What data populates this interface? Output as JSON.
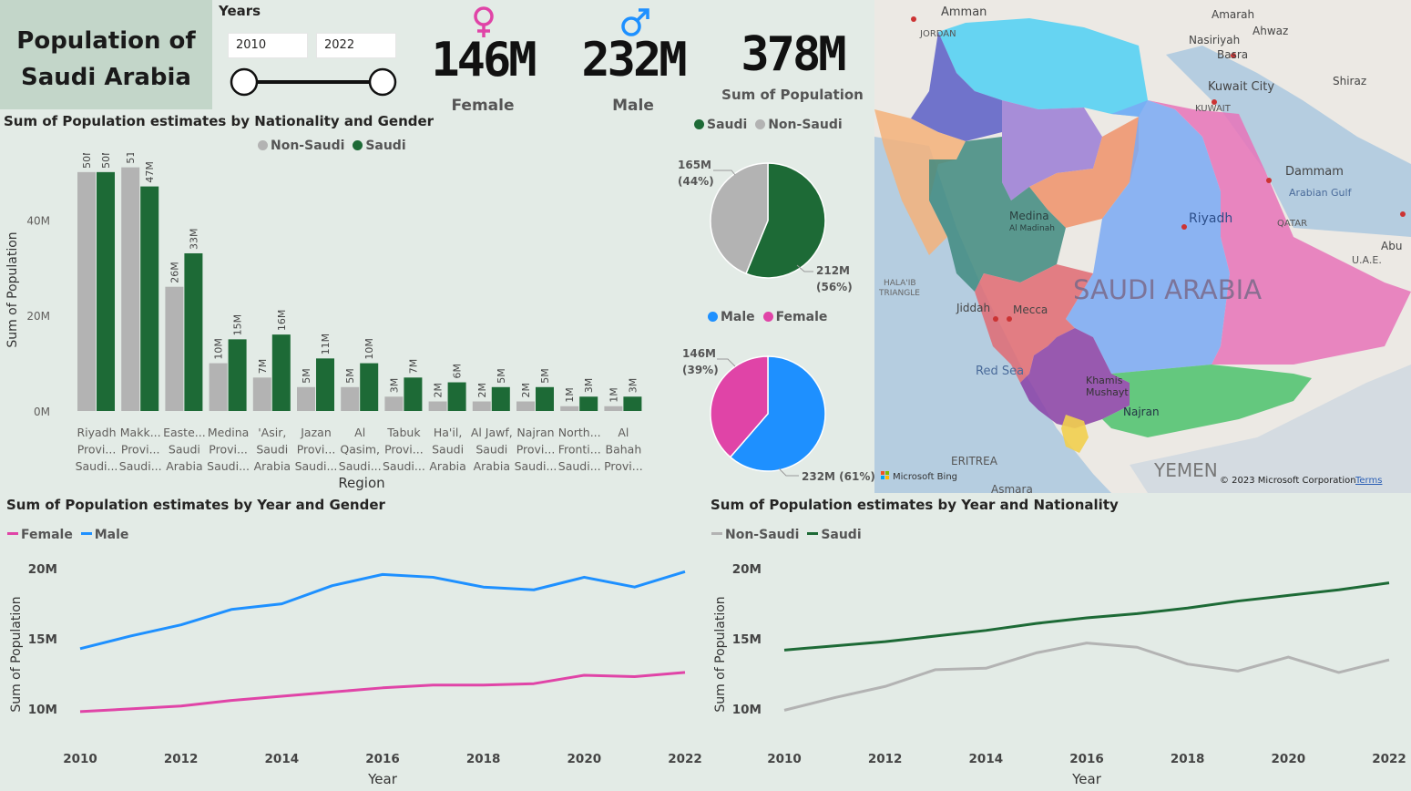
{
  "header": {
    "title_line1": "Population of",
    "title_line2": "Saudi Arabia"
  },
  "slicer": {
    "label": "Years",
    "start": "2010",
    "end": "2022"
  },
  "kpis": {
    "female_value": "146M",
    "female_label": "Female",
    "male_value": "232M",
    "male_label": "Male",
    "total_value": "378M",
    "total_label": "Sum of Population"
  },
  "bar_chart": {
    "title": "Sum of Population estimates by Nationality and Gender",
    "legend": [
      "Non-Saudi",
      "Saudi"
    ],
    "xlabel": "Region",
    "ylabel": "Sum of Population"
  },
  "pie_nat": {
    "legend": [
      "Saudi",
      "Non-Saudi"
    ],
    "label_nonsaudi": "165M",
    "pct_nonsaudi": "(44%)",
    "label_saudi": "212M",
    "pct_saudi": "(56%)"
  },
  "pie_gender": {
    "legend": [
      "Male",
      "Female"
    ],
    "label_female": "146M",
    "pct_female": "(39%)",
    "label_male": "232M (61%)"
  },
  "line_gender": {
    "title": "Sum of Population estimates by Year and Gender",
    "legend": [
      "Female",
      "Male"
    ],
    "xlabel": "Year",
    "ylabel": "Sum of Population"
  },
  "line_nat": {
    "title": "Sum of Population estimates by Year and Nationality",
    "legend": [
      "Non-Saudi",
      "Saudi"
    ],
    "xlabel": "Year",
    "ylabel": "Sum of Population"
  },
  "map": {
    "labels": [
      "Amman",
      "JORDAN",
      "Amarah",
      "Ahwaz",
      "Nasiriyah",
      "Basra",
      "Shiraz",
      "Kuwait City",
      "KUWAIT",
      "Dammam",
      "Arabian Gulf",
      "Riyadh",
      "QATAR",
      "Abu",
      "U.A.E.",
      "Medina",
      "Al Madinah",
      "HALA'IB",
      "TRIANGLE",
      "Jiddah",
      "Mecca",
      "SAUDI ARABIA",
      "Red Sea",
      "Khamis",
      "Mushayt",
      "Najran",
      "ERITREA",
      "YEMEN",
      "Asmara"
    ],
    "bing": "Microsoft Bing",
    "copyright": "© 2023 Microsoft Corporation",
    "terms": "Terms"
  },
  "colors": {
    "saudi": "#1d6a36",
    "non_saudi": "#b3b3b3",
    "male": "#1e90ff",
    "female": "#e044a7"
  },
  "chart_data": [
    {
      "type": "bar",
      "title": "Sum of Population estimates by Nationality and Gender",
      "xlabel": "Region",
      "ylabel": "Sum of Population",
      "ylim": [
        0,
        50000000
      ],
      "yticks": [
        "0M",
        "20M",
        "40M"
      ],
      "categories": [
        "Riyadh Provi... Saudi...",
        "Makk... Provi... Saudi...",
        "Easte... Saudi Arabia",
        "Medina Provi... Saudi...",
        "'Asir, Saudi Arabia",
        "Jazan Provi... Saudi...",
        "Al Qasim, Saudi...",
        "Tabuk Provi... Saudi...",
        "Ha'il, Saudi Arabia",
        "Al Jawf, Saudi Arabia",
        "Najran Provi... Saudi...",
        "North... Fronti... Saudi...",
        "Al Bahah Provi..."
      ],
      "category_lines": [
        [
          "Riyadh",
          "Provi...",
          "Saudi..."
        ],
        [
          "Makk...",
          "Provi...",
          "Saudi..."
        ],
        [
          "Easte...",
          "Saudi",
          "Arabia"
        ],
        [
          "Medina",
          "Provi...",
          "Saudi..."
        ],
        [
          "'Asir,",
          "Saudi",
          "Arabia"
        ],
        [
          "Jazan",
          "Provi...",
          "Saudi..."
        ],
        [
          "Al",
          "Qasim,",
          "Saudi..."
        ],
        [
          "Tabuk",
          "Provi...",
          "Saudi..."
        ],
        [
          "Ha'il,",
          "Saudi",
          "Arabia"
        ],
        [
          "Al Jawf,",
          "Saudi",
          "Arabia"
        ],
        [
          "Najran",
          "Provi...",
          "Saudi..."
        ],
        [
          "North...",
          "Fronti...",
          "Saudi..."
        ],
        [
          "Al",
          "Bahah",
          "Provi..."
        ]
      ],
      "series": [
        {
          "name": "Non-Saudi",
          "values": [
            50,
            51,
            26,
            10,
            7,
            5,
            5,
            3,
            2,
            2,
            2,
            1,
            1
          ],
          "labels": [
            "50M",
            "51M",
            "26M",
            "10M",
            "7M",
            "5M",
            "5M",
            "3M",
            "2M",
            "2M",
            "2M",
            "1M",
            "1M"
          ]
        },
        {
          "name": "Saudi",
          "values": [
            50,
            47,
            33,
            15,
            16,
            11,
            10,
            7,
            6,
            5,
            5,
            3,
            3
          ],
          "labels": [
            "50M",
            "47M",
            "33M",
            "15M",
            "16M",
            "11M",
            "10M",
            "7M",
            "6M",
            "5M",
            "5M",
            "3M",
            "3M"
          ]
        }
      ],
      "units": "M"
    },
    {
      "type": "pie",
      "slices": [
        {
          "name": "Saudi",
          "value": 212
        },
        {
          "name": "Non-Saudi",
          "value": 165
        }
      ]
    },
    {
      "type": "pie",
      "slices": [
        {
          "name": "Male",
          "value": 232
        },
        {
          "name": "Female",
          "value": 146
        }
      ]
    },
    {
      "type": "line",
      "title": "Sum of Population estimates by Year and Gender",
      "xlabel": "Year",
      "ylabel": "Sum of Population",
      "x": [
        2010,
        2011,
        2012,
        2013,
        2014,
        2015,
        2016,
        2017,
        2018,
        2019,
        2020,
        2021,
        2022
      ],
      "xticks": [
        "2010",
        "2012",
        "2014",
        "2016",
        "2018",
        "2020",
        "2022"
      ],
      "yticks": [
        "10M",
        "15M",
        "20M"
      ],
      "ylim": [
        9.6,
        20.6
      ],
      "series": [
        {
          "name": "Female",
          "values": [
            9.8,
            10.0,
            10.2,
            10.6,
            10.9,
            11.2,
            11.5,
            11.7,
            11.7,
            11.8,
            12.4,
            12.3,
            12.6
          ]
        },
        {
          "name": "Male",
          "values": [
            14.3,
            15.2,
            16.0,
            17.1,
            17.5,
            18.8,
            19.6,
            19.4,
            18.7,
            18.5,
            19.4,
            18.7,
            19.8
          ]
        }
      ]
    },
    {
      "type": "line",
      "title": "Sum of Population estimates by Year and Nationality",
      "xlabel": "Year",
      "ylabel": "Sum of Population",
      "x": [
        2010,
        2011,
        2012,
        2013,
        2014,
        2015,
        2016,
        2017,
        2018,
        2019,
        2020,
        2021,
        2022
      ],
      "xticks": [
        "2010",
        "2012",
        "2014",
        "2016",
        "2018",
        "2020",
        "2022"
      ],
      "yticks": [
        "10M",
        "15M",
        "20M"
      ],
      "ylim": [
        9.6,
        20.6
      ],
      "series": [
        {
          "name": "Non-Saudi",
          "values": [
            9.9,
            10.8,
            11.6,
            12.8,
            12.9,
            14.0,
            14.7,
            14.4,
            13.2,
            12.7,
            13.7,
            12.6,
            13.5
          ]
        },
        {
          "name": "Saudi",
          "values": [
            14.2,
            14.5,
            14.8,
            15.2,
            15.6,
            16.1,
            16.5,
            16.8,
            17.2,
            17.7,
            18.1,
            18.5,
            19.0
          ]
        }
      ]
    }
  ]
}
